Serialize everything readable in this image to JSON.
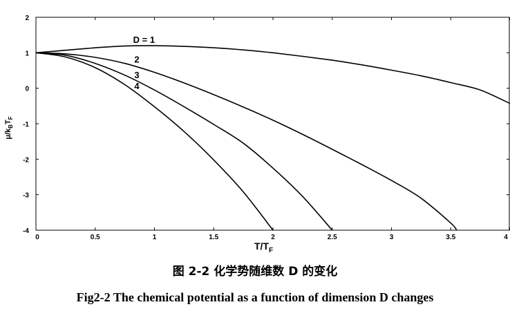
{
  "chart_data": {
    "type": "line",
    "xlabel_main": "T/T",
    "xlabel_sub": "F",
    "ylabel": "μ/k",
    "ylabel_sub1": "B",
    "ylabel_mid": "T",
    "ylabel_sub2": "F",
    "xlim": [
      0,
      4
    ],
    "ylim": [
      -4,
      2
    ],
    "x_ticks": [
      "0",
      "0.5",
      "1",
      "1.5",
      "2",
      "2.5",
      "3",
      "3.5",
      "4"
    ],
    "y_ticks": [
      "2",
      "1",
      "0",
      "-1",
      "-2",
      "-3",
      "-4"
    ],
    "grid": false,
    "series": [
      {
        "name": "D = 1",
        "x": [
          0,
          0.25,
          0.5,
          0.75,
          1.0,
          1.25,
          1.5,
          1.75,
          2.0,
          2.25,
          2.5,
          2.75,
          3.0,
          3.25,
          3.5,
          3.75,
          4.0
        ],
        "y": [
          1.0,
          1.07,
          1.14,
          1.19,
          1.2,
          1.18,
          1.14,
          1.08,
          1.0,
          0.9,
          0.79,
          0.66,
          0.51,
          0.35,
          0.16,
          -0.05,
          -0.43
        ]
      },
      {
        "name": "2",
        "x": [
          0,
          0.25,
          0.5,
          0.75,
          1.0,
          1.25,
          1.5,
          1.75,
          2.0,
          2.25,
          2.5,
          2.75,
          3.0,
          3.25,
          3.5,
          3.55
        ],
        "y": [
          1.0,
          0.97,
          0.87,
          0.7,
          0.45,
          0.15,
          -0.18,
          -0.53,
          -0.9,
          -1.3,
          -1.72,
          -2.15,
          -2.6,
          -3.1,
          -3.8,
          -4.0
        ]
      },
      {
        "name": "3",
        "x": [
          0,
          0.25,
          0.5,
          0.75,
          1.0,
          1.25,
          1.5,
          1.75,
          2.0,
          2.25,
          2.5
        ],
        "y": [
          1.0,
          0.93,
          0.7,
          0.37,
          -0.05,
          -0.52,
          -1.02,
          -1.55,
          -2.25,
          -3.05,
          -4.0
        ]
      },
      {
        "name": "4",
        "x": [
          0,
          0.25,
          0.5,
          0.75,
          1.0,
          1.25,
          1.5,
          1.75,
          2.0
        ],
        "y": [
          1.0,
          0.88,
          0.58,
          0.1,
          -0.52,
          -1.22,
          -2.02,
          -2.92,
          -4.0
        ]
      }
    ]
  },
  "captions": {
    "chinese": "图 2-2 化学势随维数 D 的变化",
    "english": "Fig2-2 The chemical potential as a function of dimension D changes"
  }
}
